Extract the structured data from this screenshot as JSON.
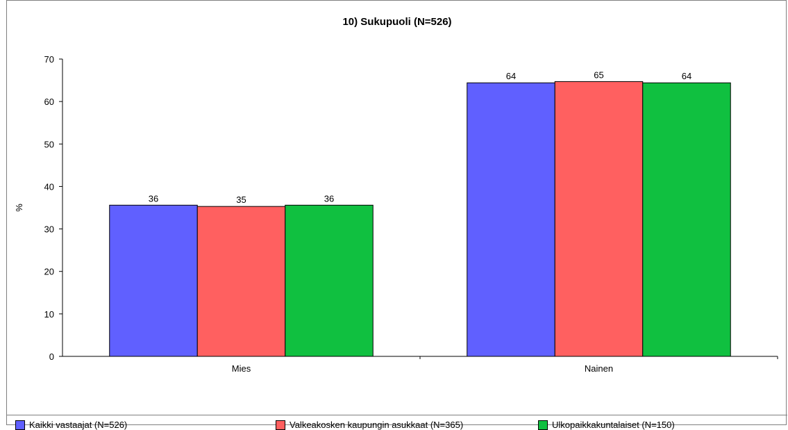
{
  "chart_data": {
    "type": "bar",
    "title": "10) Sukupuoli (N=526)",
    "ylabel": "%",
    "xlabel": "",
    "ylim": [
      0,
      70
    ],
    "yticks": [
      0,
      10,
      20,
      30,
      40,
      50,
      60,
      70
    ],
    "categories": [
      "Mies",
      "Nainen"
    ],
    "series": [
      {
        "name": "Kaikki vastaajat (N=526)",
        "color": "#6060ff",
        "values": [
          35.6,
          64.4
        ],
        "labels": [
          "36",
          "64"
        ]
      },
      {
        "name": "Valkeakosken kaupungin asukkaat (N=365)",
        "color": "#ff6060",
        "values": [
          35.3,
          64.7
        ],
        "labels": [
          "35",
          "65"
        ]
      },
      {
        "name": "Ulkopaikkakuntalaiset (N=150)",
        "color": "#10c040",
        "values": [
          35.6,
          64.4
        ],
        "labels": [
          "36",
          "64"
        ]
      }
    ],
    "grid": false,
    "legend_position": "bottom"
  }
}
